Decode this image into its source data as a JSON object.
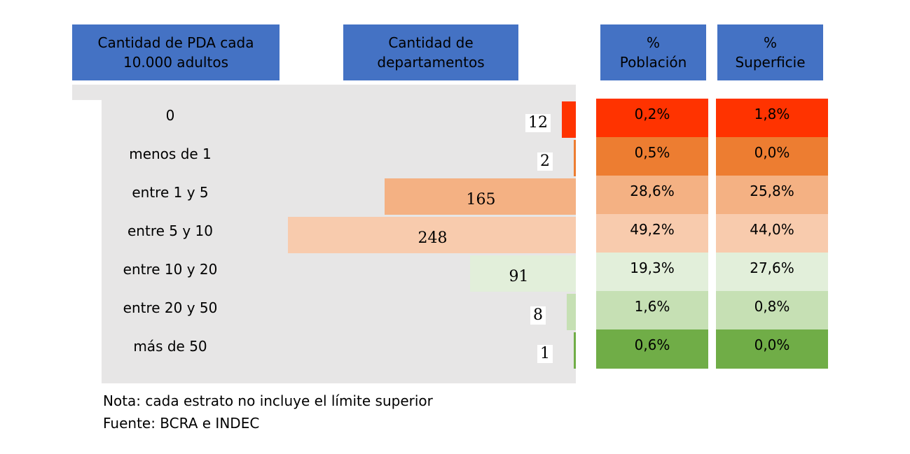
{
  "headers": {
    "pda": "Cantidad de PDA cada\n10.000 adultos",
    "departamentos": "Cantidad de\ndepartamentos",
    "poblacion": "%\nPoblación",
    "superficie": "%\nSuperficie"
  },
  "colors": {
    "header": "#4472c4",
    "panel": "#e7e6e6",
    "rows": [
      "#ff3300",
      "#ed7d31",
      "#f4b183",
      "#f8cbad",
      "#e2efda",
      "#c6e0b4",
      "#70ad47"
    ]
  },
  "chart_data": {
    "type": "bar",
    "orientation": "horizontal",
    "categories": [
      "0",
      "menos de 1",
      "entre 1 y 5",
      "entre 5 y 10",
      "entre 10 y 20",
      "entre 20 y 50",
      "más de 50"
    ],
    "values": [
      12,
      2,
      165,
      248,
      91,
      8,
      1
    ],
    "value_labels": [
      "12",
      "2",
      "165",
      "248",
      "91",
      "8",
      "1"
    ],
    "xlim": [
      0,
      248
    ],
    "grid": false,
    "legend": "none"
  },
  "table": {
    "poblacion": [
      "0,2%",
      "0,5%",
      "28,6%",
      "49,2%",
      "19,3%",
      "1,6%",
      "0,6%"
    ],
    "superficie": [
      "1,8%",
      "0,0%",
      "25,8%",
      "44,0%",
      "27,6%",
      "0,8%",
      "0,0%"
    ]
  },
  "notes": {
    "line1": "Nota: cada estrato no incluye el límite superior",
    "line2": "Fuente: BCRA e INDEC"
  }
}
